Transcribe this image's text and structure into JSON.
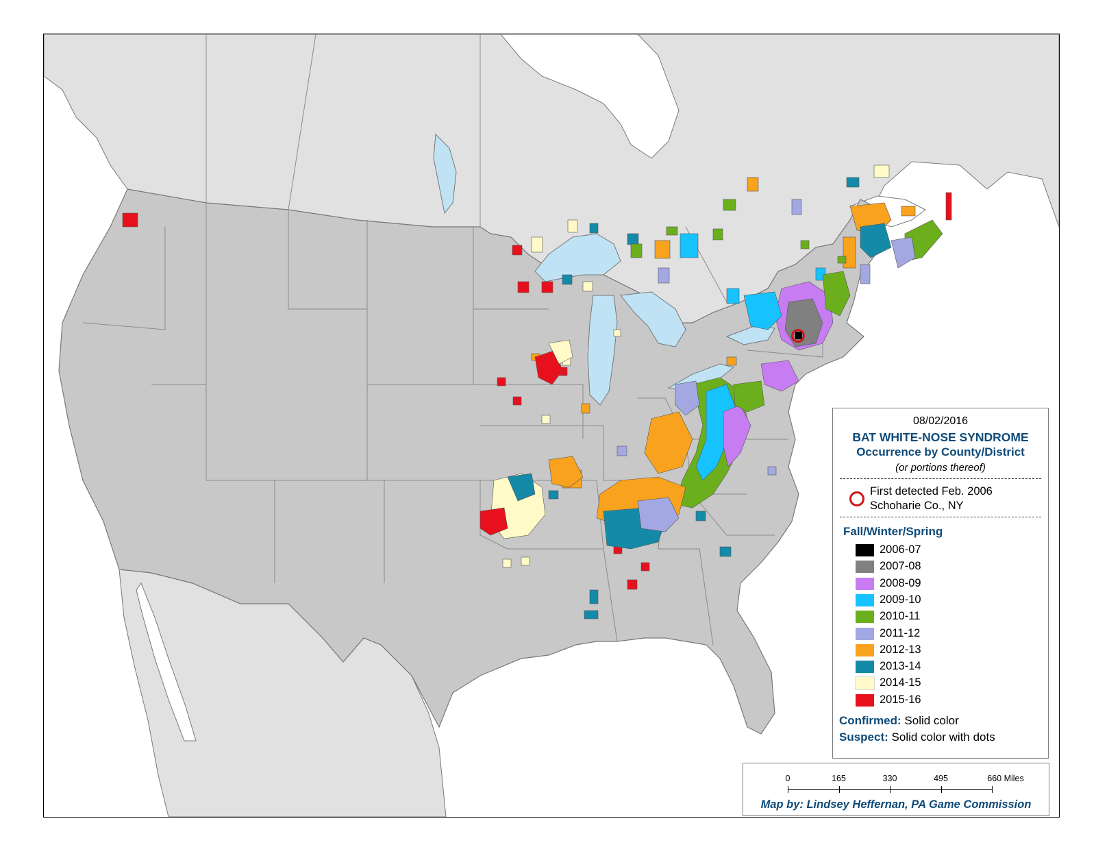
{
  "map": {
    "legend": {
      "date": "08/02/2016",
      "title": "BAT WHITE-NOSE SYNDROME",
      "subtitle": "Occurrence by County/District",
      "note": "(or portions thereof)",
      "first_detected": {
        "line1": "First detected Feb. 2006",
        "line2": "Schoharie Co., NY",
        "marker_color": "#d21414"
      },
      "season_heading": "Fall/Winter/Spring",
      "seasons": [
        {
          "label": "2006-07",
          "color": "#000000"
        },
        {
          "label": "2007-08",
          "color": "#808080"
        },
        {
          "label": "2008-09",
          "color": "#c77cf2"
        },
        {
          "label": "2009-10",
          "color": "#17c3ff"
        },
        {
          "label": "2010-11",
          "color": "#6bb01c"
        },
        {
          "label": "2011-12",
          "color": "#a3a8e3"
        },
        {
          "label": "2012-13",
          "color": "#f8a21d"
        },
        {
          "label": "2013-14",
          "color": "#148aa8"
        },
        {
          "label": "2014-15",
          "color": "#fffac8"
        },
        {
          "label": "2015-16",
          "color": "#e8101c"
        }
      ],
      "confirmed": {
        "key": "Confirmed:",
        "value": "Solid color"
      },
      "suspect": {
        "key": "Suspect:",
        "value": "Solid color with dots"
      }
    },
    "scale": {
      "ticks": [
        "0",
        "165",
        "330",
        "495",
        "660 Miles"
      ]
    },
    "credit": "Map by: Lindsey Heffernan, PA Game Commission",
    "colors": {
      "us_land": "#c8c8c8",
      "foreign_land": "#e1e1e1",
      "water": "#bfe3f5",
      "ocean": "#ffffff",
      "boundary": "#777777"
    }
  }
}
